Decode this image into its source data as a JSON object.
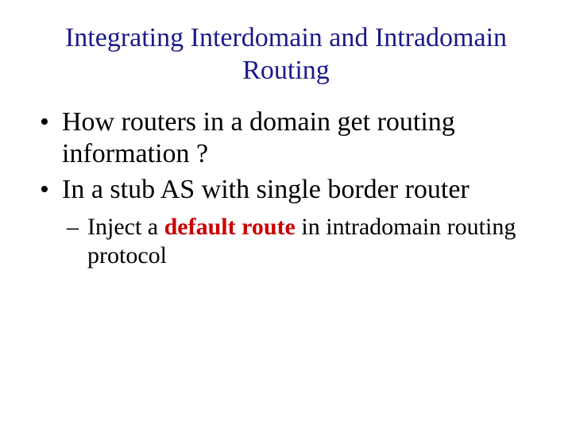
{
  "slide": {
    "title": "Integrating Interdomain and Intradomain Routing",
    "title_color": "#1a1a8a",
    "title_fontsize": 34,
    "bullets": [
      {
        "text": "How routers in a domain get routing information ?",
        "fontsize": 34
      },
      {
        "text": "In a stub AS with single border router",
        "fontsize": 34
      }
    ],
    "sub_bullets": [
      {
        "prefix": "Inject a ",
        "highlight": "default route",
        "suffix": " in intradomain routing protocol",
        "highlight_color": "#cc0000",
        "fontsize": 30
      }
    ],
    "background_color": "#ffffff",
    "body_text_color": "#000000"
  }
}
